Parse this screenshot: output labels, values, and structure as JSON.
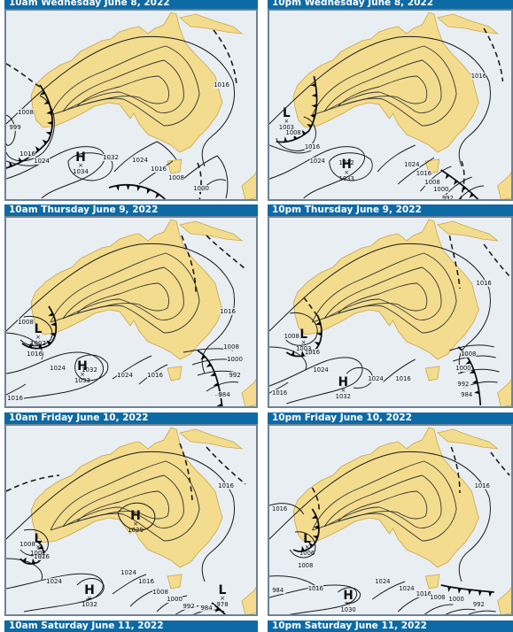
{
  "colors": {
    "header_bg": "#0d6aa5",
    "land": "#f3dc8e",
    "sea": "#e9eef3"
  },
  "maps": [
    {
      "id": "p0",
      "label": "10am Wednesday June 8, 2022",
      "centres": [
        {
          "type": "H",
          "value": "1034"
        }
      ],
      "isobars": [
        "1016",
        "1008",
        "999",
        "1016",
        "1024",
        "1032",
        "1024",
        "1016",
        "1008",
        "1000"
      ]
    },
    {
      "id": "p1",
      "label": "10pm Wednesday June 8, 2022",
      "centres": [
        {
          "type": "L",
          "value": "1003"
        },
        {
          "type": "H",
          "value": "1033"
        }
      ],
      "isobars": [
        "1016",
        "1008",
        "1016",
        "1024",
        "1032",
        "1024",
        "1016",
        "1008",
        "1000",
        "992"
      ]
    },
    {
      "id": "p2",
      "label": "10am Thursday June 9, 2022",
      "centres": [
        {
          "type": "L",
          "value": "1002"
        },
        {
          "type": "H",
          "value": "1033"
        }
      ],
      "isobars": [
        "1016",
        "1008",
        "1016",
        "1024",
        "1032",
        "1024",
        "1016",
        "1008",
        "1000",
        "992",
        "984",
        "1016"
      ]
    },
    {
      "id": "p3",
      "label": "10pm Thursday June 9, 2022",
      "centres": [
        {
          "type": "L",
          "value": "1003"
        },
        {
          "type": "H",
          "value": "1032"
        }
      ],
      "isobars": [
        "1016",
        "1008",
        "1016",
        "1024",
        "1024",
        "1016",
        "1008",
        "1000",
        "992",
        "984",
        "1016"
      ]
    },
    {
      "id": "p4",
      "label": "10am Friday June 10, 2022",
      "centres": [
        {
          "type": "H",
          "value": "1029"
        },
        {
          "type": "L",
          "value": "1002"
        },
        {
          "type": "H",
          "value": "1032"
        },
        {
          "type": "L",
          "value": "978"
        }
      ],
      "isobars": [
        "1016",
        "1008",
        "1016",
        "1024",
        "1024",
        "1016",
        "1008",
        "1000",
        "992",
        "984"
      ]
    },
    {
      "id": "p5",
      "label": "10pm Friday June 10, 2022",
      "centres": [
        {
          "type": "L",
          "value": "1006"
        },
        {
          "type": "H",
          "value": "1030"
        }
      ],
      "isobars": [
        "1016",
        "1016",
        "1008",
        "1016",
        "1024",
        "1024",
        "1016",
        "1008",
        "1000",
        "992",
        "984"
      ]
    }
  ],
  "footer_labels": [
    "10am Saturday June 11, 2022",
    "10pm Saturday June 11, 2022"
  ]
}
